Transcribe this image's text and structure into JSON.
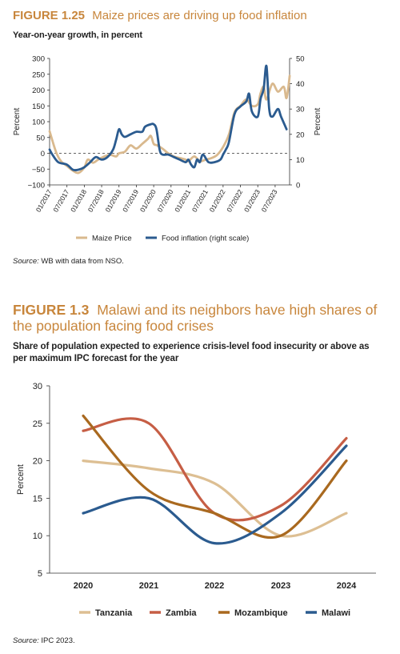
{
  "fig1": {
    "number": "FIGURE 1.25",
    "title": "Maize prices are driving up food inflation",
    "subtitle": "Year-on-year growth, in percent",
    "source_label": "Source:",
    "source_text": " WB with data from NSO.",
    "colors": {
      "maize": "#d9b98e",
      "food": "#2b5b8f"
    },
    "chart_data": {
      "type": "line",
      "ylabel_left": "Percent",
      "ylabel_right": "Percent",
      "ylim_left": [
        -100,
        300
      ],
      "ylim_right": [
        0,
        50
      ],
      "yticks_left": [
        "300",
        "250",
        "200",
        "150",
        "100",
        "50",
        "0",
        "−50",
        "−100"
      ],
      "yticks_right": [
        "50",
        "40",
        "30",
        "20",
        "10",
        "0"
      ],
      "x_range": [
        2017.0,
        2023.917
      ],
      "xticks": [
        {
          "label": "01/2017",
          "x": 2017.0
        },
        {
          "label": "07/2017",
          "x": 2017.5
        },
        {
          "label": "01/2018",
          "x": 2018.0
        },
        {
          "label": "07/2018",
          "x": 2018.5
        },
        {
          "label": "01/2019",
          "x": 2019.0
        },
        {
          "label": "07/2019",
          "x": 2019.5
        },
        {
          "label": "01/2020",
          "x": 2020.0
        },
        {
          "label": "07/2020",
          "x": 2020.5
        },
        {
          "label": "01/2021",
          "x": 2021.0
        },
        {
          "label": "07/2021",
          "x": 2021.5
        },
        {
          "label": "01/2022",
          "x": 2022.0
        },
        {
          "label": "07/2022",
          "x": 2022.5
        },
        {
          "label": "01/2023",
          "x": 2023.0
        },
        {
          "label": "07/2023",
          "x": 2023.5
        }
      ],
      "series": [
        {
          "name": "Maize Price",
          "axis": "left",
          "points": [
            [
              2017.0,
              70
            ],
            [
              2017.08,
              40
            ],
            [
              2017.2,
              0
            ],
            [
              2017.33,
              -25
            ],
            [
              2017.5,
              -40
            ],
            [
              2017.67,
              -55
            ],
            [
              2017.83,
              -62
            ],
            [
              2018.0,
              -45
            ],
            [
              2018.1,
              -20
            ],
            [
              2018.25,
              -30
            ],
            [
              2018.4,
              -20
            ],
            [
              2018.58,
              -10
            ],
            [
              2018.75,
              -5
            ],
            [
              2018.92,
              -10
            ],
            [
              2019.0,
              0
            ],
            [
              2019.17,
              5
            ],
            [
              2019.33,
              25
            ],
            [
              2019.5,
              15
            ],
            [
              2019.67,
              30
            ],
            [
              2019.83,
              45
            ],
            [
              2019.92,
              55
            ],
            [
              2020.0,
              30
            ],
            [
              2020.1,
              25
            ],
            [
              2020.25,
              15
            ],
            [
              2020.42,
              0
            ],
            [
              2020.58,
              -10
            ],
            [
              2020.75,
              -15
            ],
            [
              2020.92,
              -20
            ],
            [
              2021.0,
              -25
            ],
            [
              2021.17,
              -10
            ],
            [
              2021.33,
              -25
            ],
            [
              2021.5,
              -20
            ],
            [
              2021.67,
              -15
            ],
            [
              2021.83,
              -5
            ],
            [
              2022.0,
              20
            ],
            [
              2022.17,
              60
            ],
            [
              2022.33,
              130
            ],
            [
              2022.5,
              150
            ],
            [
              2022.67,
              170
            ],
            [
              2022.83,
              150
            ],
            [
              2023.0,
              155
            ],
            [
              2023.08,
              190
            ],
            [
              2023.17,
              210
            ],
            [
              2023.25,
              170
            ],
            [
              2023.42,
              220
            ],
            [
              2023.58,
              195
            ],
            [
              2023.75,
              210
            ],
            [
              2023.83,
              175
            ],
            [
              2023.92,
              245
            ]
          ]
        },
        {
          "name": "Food inflation (right scale)",
          "axis": "right",
          "points": [
            [
              2017.0,
              14
            ],
            [
              2017.08,
              12
            ],
            [
              2017.25,
              9
            ],
            [
              2017.5,
              8
            ],
            [
              2017.67,
              6
            ],
            [
              2017.83,
              6
            ],
            [
              2018.0,
              7
            ],
            [
              2018.17,
              9
            ],
            [
              2018.33,
              11
            ],
            [
              2018.5,
              10
            ],
            [
              2018.67,
              11
            ],
            [
              2018.83,
              14
            ],
            [
              2018.92,
              18
            ],
            [
              2019.0,
              22
            ],
            [
              2019.08,
              20
            ],
            [
              2019.17,
              19
            ],
            [
              2019.33,
              20
            ],
            [
              2019.5,
              21
            ],
            [
              2019.67,
              21
            ],
            [
              2019.75,
              23
            ],
            [
              2019.92,
              24
            ],
            [
              2020.0,
              24
            ],
            [
              2020.08,
              22
            ],
            [
              2020.17,
              14
            ],
            [
              2020.25,
              12
            ],
            [
              2020.42,
              12
            ],
            [
              2020.58,
              11
            ],
            [
              2020.75,
              10
            ],
            [
              2020.92,
              9
            ],
            [
              2021.0,
              10
            ],
            [
              2021.08,
              8
            ],
            [
              2021.17,
              7
            ],
            [
              2021.25,
              10
            ],
            [
              2021.33,
              9
            ],
            [
              2021.42,
              12
            ],
            [
              2021.58,
              9
            ],
            [
              2021.75,
              9
            ],
            [
              2021.92,
              10
            ],
            [
              2022.0,
              12
            ],
            [
              2022.08,
              14
            ],
            [
              2022.17,
              17
            ],
            [
              2022.33,
              28
            ],
            [
              2022.5,
              31
            ],
            [
              2022.67,
              33
            ],
            [
              2022.75,
              36
            ],
            [
              2022.83,
              29
            ],
            [
              2023.0,
              27
            ],
            [
              2023.08,
              34
            ],
            [
              2023.17,
              38
            ],
            [
              2023.25,
              47
            ],
            [
              2023.33,
              30
            ],
            [
              2023.42,
              27
            ],
            [
              2023.58,
              30
            ],
            [
              2023.67,
              27
            ],
            [
              2023.83,
              22
            ]
          ]
        }
      ]
    }
  },
  "fig2": {
    "number": "FIGURE 1.3",
    "title": "Malawi and its neighbors have high shares of the population facing food crises",
    "subtitle": "Share of population expected to experience crisis-level food insecurity or above as per maximum IPC forecast for the year",
    "source_label": "Source:",
    "source_text": " IPC 2023.",
    "chart_data": {
      "type": "line",
      "categories": [
        "2020",
        "2021",
        "2022",
        "2023",
        "2024"
      ],
      "ylabel": "Percent",
      "ylim": [
        5,
        30
      ],
      "yticks": [
        "30",
        "25",
        "20",
        "15",
        "10",
        "5"
      ],
      "series": [
        {
          "name": "Tanzania",
          "color": "#ddbf93",
          "values": [
            20,
            19,
            17,
            10,
            13
          ]
        },
        {
          "name": "Zambia",
          "color": "#c65e45",
          "values": [
            24,
            25,
            13,
            14,
            23
          ]
        },
        {
          "name": "Mozambique",
          "color": "#a9691f",
          "values": [
            26,
            16,
            13,
            10,
            20
          ]
        },
        {
          "name": "Malawi",
          "color": "#2b5b8f",
          "values": [
            13,
            15,
            9,
            13,
            22
          ]
        }
      ]
    }
  }
}
